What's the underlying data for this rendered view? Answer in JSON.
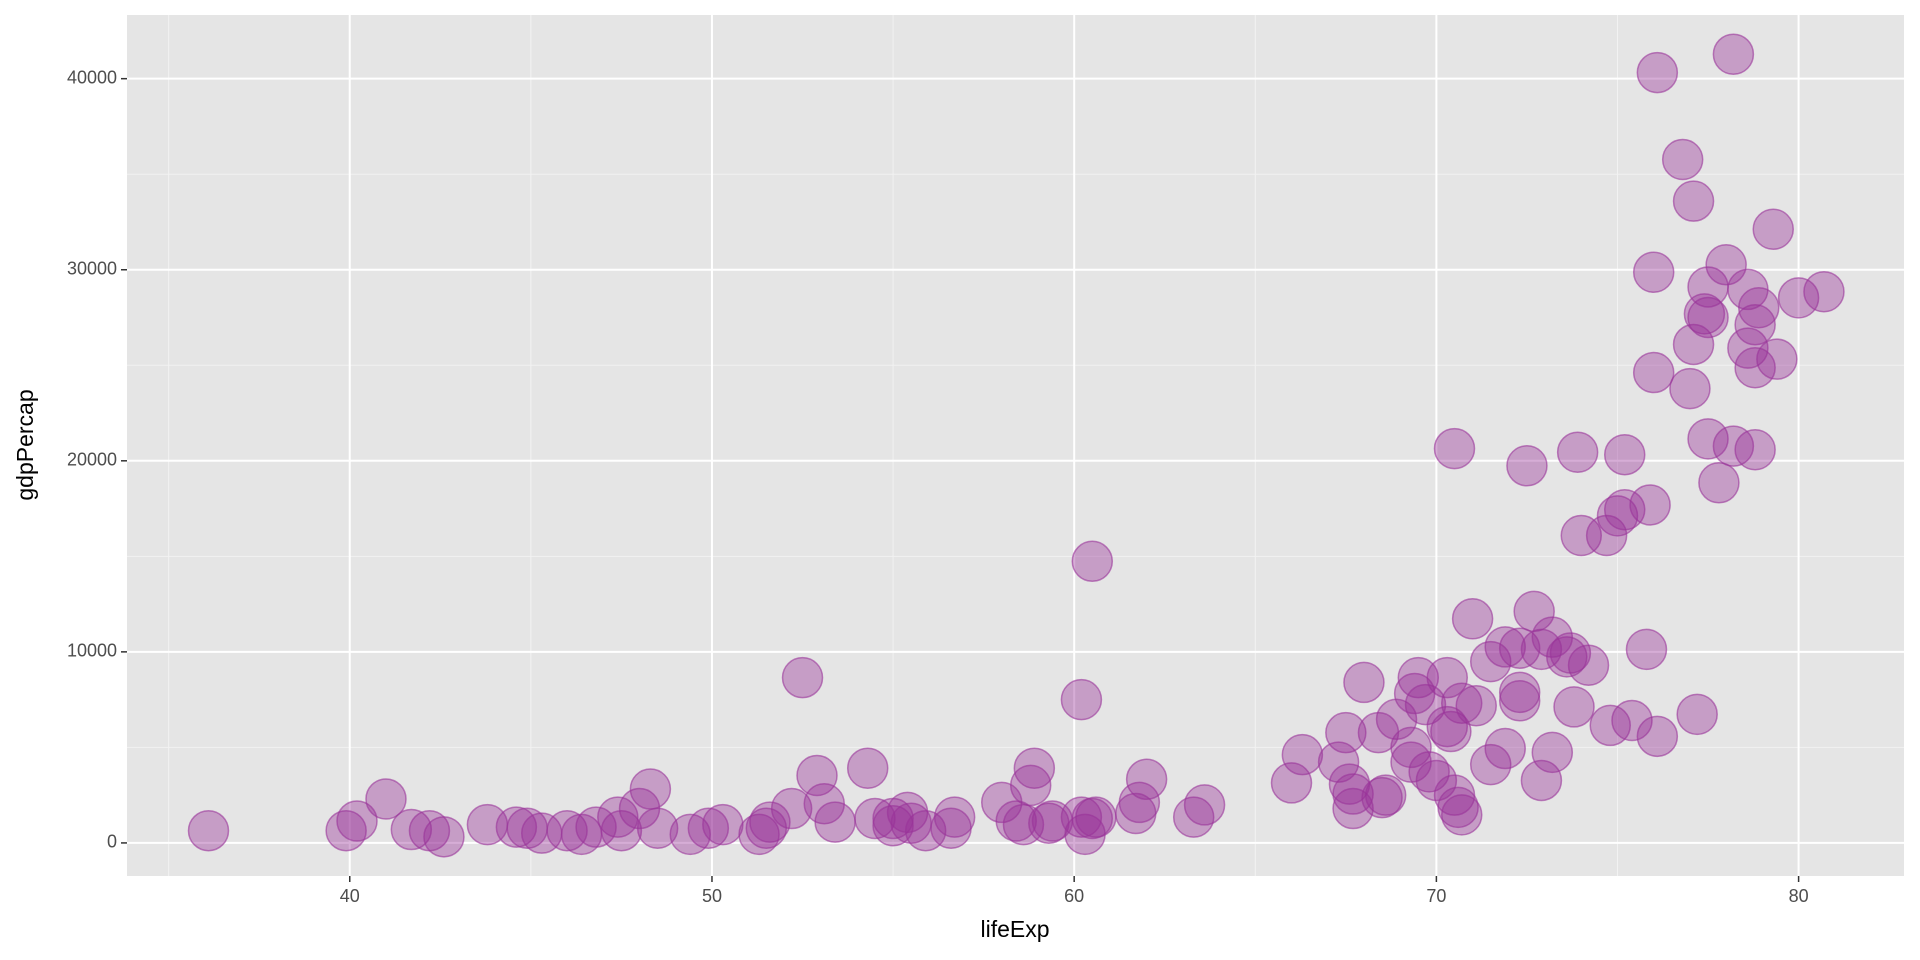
{
  "chart_data": {
    "type": "scatter",
    "x_label": "lifeExp",
    "y_label": "gdpPercap",
    "color": "#993399",
    "opacity": 0.4,
    "xlim": [
      33.85,
      82.91
    ],
    "ylim": [
      -1731,
      43333
    ],
    "xticks": [
      40,
      50,
      60,
      70,
      80
    ],
    "yticks": [
      0,
      10000,
      20000,
      30000,
      40000
    ],
    "xminorticks": [
      35,
      45,
      55,
      65,
      75
    ],
    "yminorticks": [
      5000,
      15000,
      25000,
      35000
    ],
    "grid": true,
    "x": [
      36.1,
      39.9,
      40.2,
      41.0,
      41.7,
      42.2,
      42.6,
      43.8,
      44.6,
      44.9,
      45.3,
      46.0,
      46.4,
      46.8,
      47.4,
      47.5,
      48.0,
      48.3,
      48.5,
      49.4,
      49.9,
      50.3,
      51.3,
      51.5,
      51.6,
      52.2,
      52.5,
      52.9,
      53.1,
      53.4,
      54.3,
      54.5,
      55.0,
      55.0,
      55.4,
      55.5,
      55.9,
      56.6,
      56.7,
      58.0,
      58.4,
      58.6,
      58.9,
      58.8,
      59.3,
      59.4,
      60.2,
      60.2,
      60.5,
      60.3,
      60.5,
      60.6,
      61.7,
      61.8,
      62.0,
      63.3,
      63.6,
      66.0,
      66.3,
      67.3,
      67.5,
      67.6,
      67.7,
      67.7,
      68.0,
      68.4,
      68.5,
      68.6,
      68.9,
      69.3,
      69.3,
      69.5,
      69.4,
      69.7,
      69.8,
      70.0,
      70.3,
      70.3,
      70.4,
      70.5,
      70.5,
      70.6,
      70.7,
      70.7,
      71.0,
      71.1,
      71.5,
      71.5,
      71.9,
      71.9,
      72.3,
      72.3,
      72.3,
      72.5,
      72.7,
      72.9,
      72.9,
      73.2,
      73.2,
      73.6,
      73.7,
      73.8,
      73.9,
      74.0,
      74.2,
      74.7,
      74.8,
      75.0,
      75.2,
      75.2,
      75.4,
      75.8,
      75.9,
      76.0,
      76.0,
      76.1,
      76.1,
      76.8,
      77.0,
      77.1,
      77.1,
      77.2,
      77.4,
      77.5,
      77.5,
      77.5,
      77.8,
      78.0,
      78.2,
      78.2,
      78.6,
      78.6,
      78.8,
      78.8,
      78.8,
      78.9,
      79.3,
      79.4,
      80.0,
      80.7
    ],
    "y": [
      640,
      640,
      1150,
      2300,
      700,
      640,
      320,
      960,
      830,
      770,
      510,
      640,
      450,
      830,
      1350,
      640,
      1800,
      2820,
      770,
      450,
      770,
      960,
      450,
      770,
      1090,
      1800,
      8650,
      3530,
      2050,
      1090,
      3910,
      1280,
      1280,
      900,
      1600,
      1030,
      640,
      770,
      1350,
      2120,
      1150,
      960,
      3910,
      3010,
      1030,
      1150,
      1350,
      7500,
      14740,
      450,
      1280,
      1350,
      1540,
      2120,
      3330,
      1350,
      1990,
      3140,
      4620,
      4230,
      5770,
      3080,
      2560,
      1800,
      8400,
      5770,
      2370,
      2500,
      6470,
      5000,
      4230,
      8650,
      7820,
      7240,
      3720,
      3270,
      8650,
      6090,
      5830,
      20640,
      2500,
      1860,
      1470,
      7310,
      11730,
      7180,
      9490,
      4100,
      10260,
      4940,
      10190,
      7880,
      7440,
      19740,
      12120,
      10130,
      3270,
      10770,
      4740,
      9740,
      9940,
      7120,
      20450,
      16090,
      9300,
      16090,
      6150,
      17120,
      17440,
      20320,
      6410,
      10130,
      17690,
      24620,
      29870,
      40320,
      5580,
      35770,
      23780,
      26090,
      33590,
      6730,
      27690,
      29100,
      27500,
      21150,
      18850,
      30260,
      41280,
      20770,
      28970,
      25900,
      20580,
      24870,
      27120,
      28010,
      32120,
      25320,
      28530,
      28850
    ]
  }
}
